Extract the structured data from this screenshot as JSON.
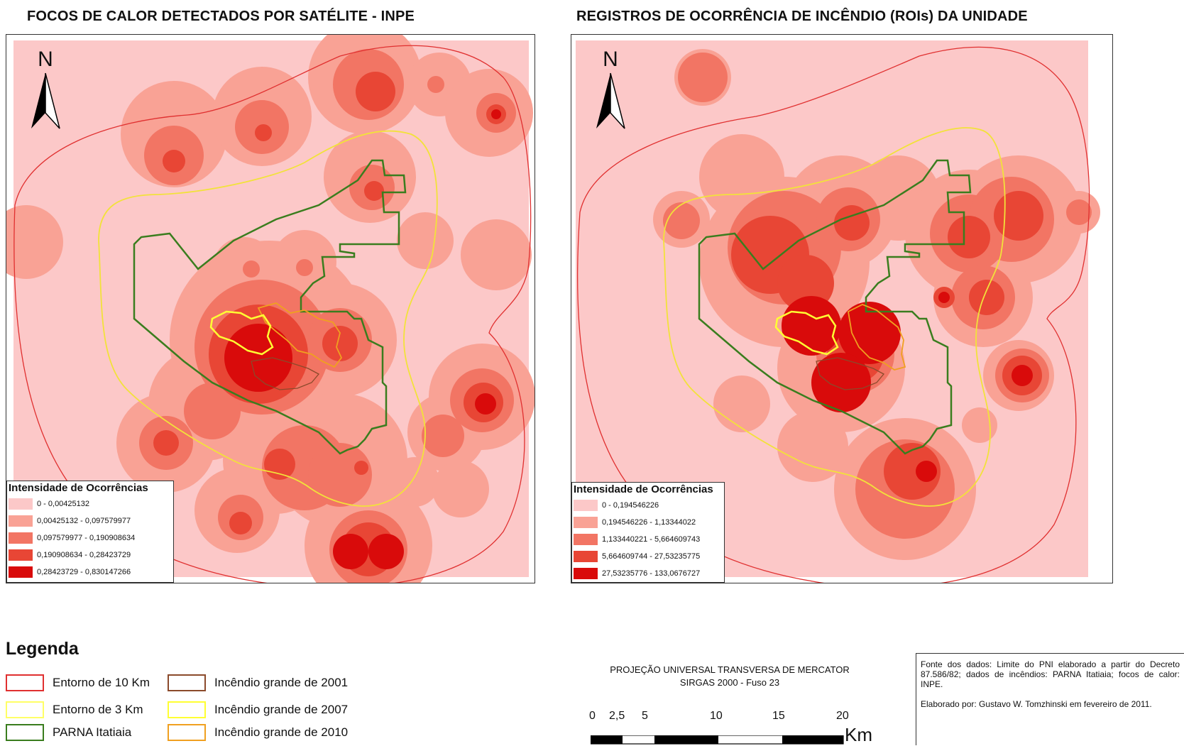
{
  "left_map": {
    "title": "FOCOS DE CALOR DETECTADOS POR SATÉLITE - INPE",
    "north": "N",
    "legend_title": "Intensidade de Ocorrências",
    "classes": [
      {
        "label": "0 - 0,00425132",
        "color": "#fcc8c8"
      },
      {
        "label": "0,00425132 - 0,097579977",
        "color": "#f9a295"
      },
      {
        "label": "0,097579977 - 0,190908634",
        "color": "#f27564"
      },
      {
        "label": "0,190908634 - 0,28423729",
        "color": "#e84635"
      },
      {
        "label": "0,28423729 - 0,830147266",
        "color": "#d90b0b"
      }
    ]
  },
  "right_map": {
    "title": "REGISTROS DE OCORRÊNCIA DE INCÊNDIO (ROIs) DA UNIDADE",
    "north": "N",
    "legend_title": "Intensidade de Ocorrências",
    "classes": [
      {
        "label": "0 - 0,194546226",
        "color": "#fcc8c8"
      },
      {
        "label": "0,194546226 - 1,13344022",
        "color": "#f9a295"
      },
      {
        "label": "1,133440221 - 5,664609743",
        "color": "#f27564"
      },
      {
        "label": "5,664609744 - 27,53235775",
        "color": "#e84635"
      },
      {
        "label": "27,53235776 - 133,0676727",
        "color": "#d90b0b"
      }
    ]
  },
  "legend": {
    "title": "Legenda",
    "items": [
      {
        "label": "Entorno de 10 Km",
        "color": "#e03030"
      },
      {
        "label": "Entorno de 3 Km",
        "color": "#ffff66"
      },
      {
        "label": "PARNA Itatiaia",
        "color": "#3a7d1e"
      },
      {
        "label": "Incêndio grande de 2001",
        "color": "#8b4a2b"
      },
      {
        "label": "Incêndio grande de 2007",
        "color": "#ffff33"
      },
      {
        "label": "Incêndio grande de 2010",
        "color": "#f0a020"
      }
    ]
  },
  "projection": {
    "line1": "PROJEÇÃO UNIVERSAL TRANSVERSA DE MERCATOR",
    "line2": "SIRGAS 2000 - Fuso 23"
  },
  "scale": {
    "ticks": [
      "0",
      "2,5",
      "5",
      "10",
      "15",
      "20"
    ],
    "unit": "Km"
  },
  "source": {
    "data": "Fonte dos dados: Limite do PNI elaborado a partir do Decreto 87.586/82; dados de incêndios: PARNA Itatiaia; focos de calor: INPE.",
    "author": "Elaborado por: Gustavo W. Tomzhinski em fevereiro de 2011."
  },
  "colors": {
    "background_class": "#fcc8c8",
    "frame": "#333333"
  }
}
